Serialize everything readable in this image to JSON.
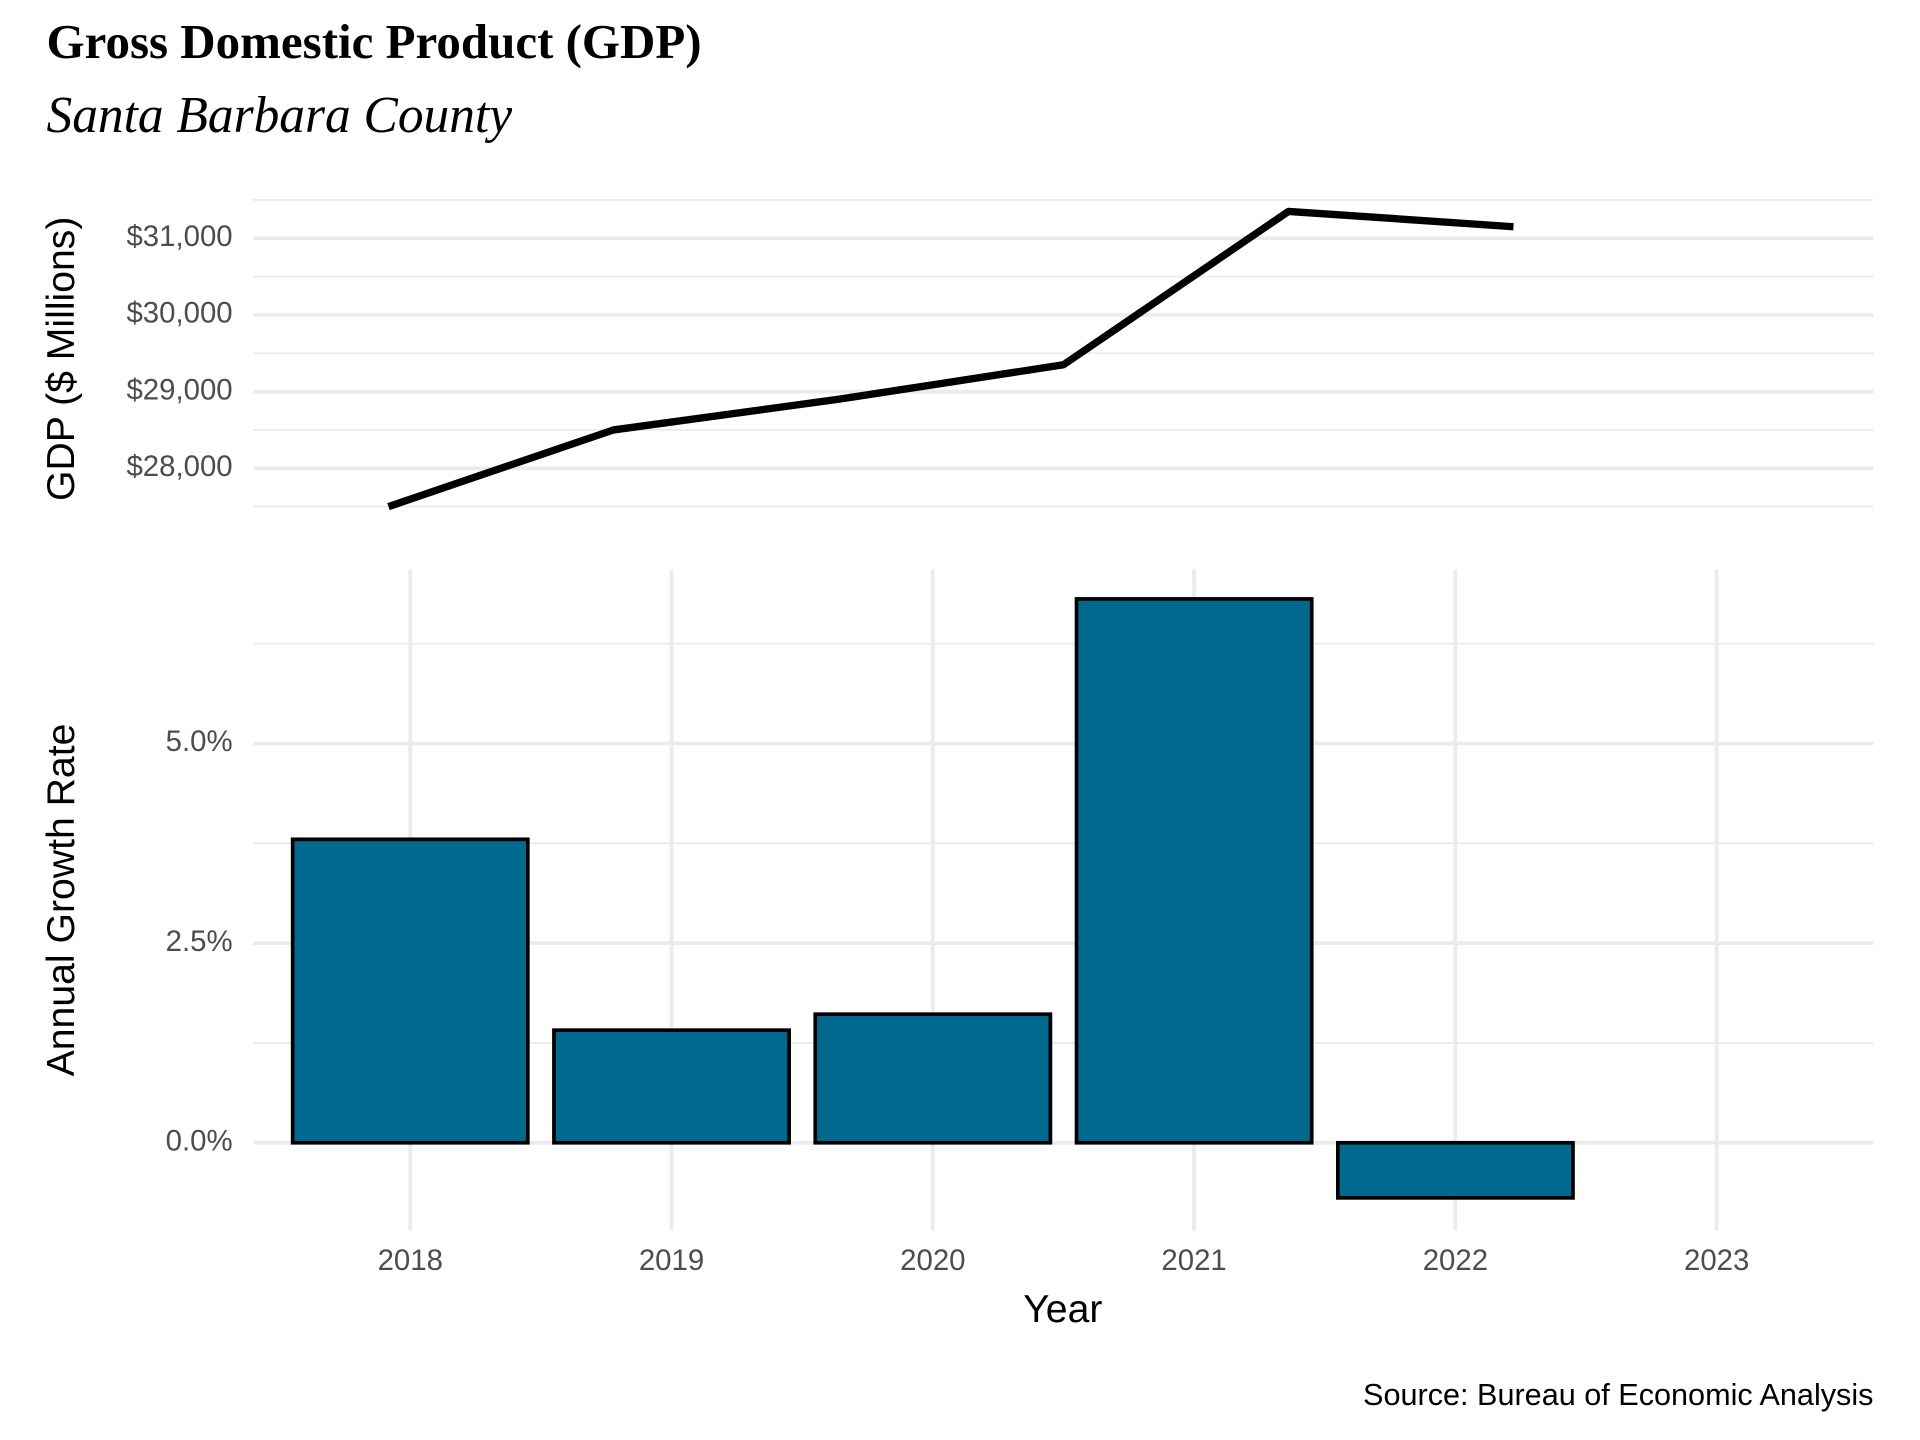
{
  "chart_data": [
    {
      "type": "line",
      "title": "Gross Domestic Product (GDP)",
      "subtitle": "Santa Barbara County",
      "y_label": "GDP ($ Millions)",
      "x": [
        2018,
        2019,
        2020,
        2021,
        2022,
        2023
      ],
      "values": [
        27500,
        28500,
        28900,
        29350,
        31350,
        31150
      ],
      "color": "#000000",
      "xlim": [
        2017.4,
        2024.6
      ],
      "ylim": [
        27480,
        31520
      ],
      "yticks": [
        {
          "value": 28000,
          "label": "$28,000"
        },
        {
          "value": 29000,
          "label": "$29,000"
        },
        {
          "value": 30000,
          "label": "$30,000"
        },
        {
          "value": 31000,
          "label": "$31,000"
        }
      ],
      "grid": true
    },
    {
      "type": "bar",
      "y_label": "Annual Growth Rate",
      "x_label": "Year",
      "caption": "Source: Bureau of Economic Analysis",
      "categories": [
        "2018",
        "2019",
        "2020",
        "2021",
        "2022",
        "2023"
      ],
      "values": [
        3.8,
        1.41,
        1.61,
        6.81,
        -0.69,
        null
      ],
      "color": "#006a8e",
      "edge_color": "#000000",
      "ylim": [
        -1.1,
        7.18
      ],
      "yticks": [
        {
          "value": 0,
          "label": "0.0%"
        },
        {
          "value": 2.5,
          "label": "2.5%"
        },
        {
          "value": 5,
          "label": "5.0%"
        }
      ],
      "grid": true
    }
  ]
}
